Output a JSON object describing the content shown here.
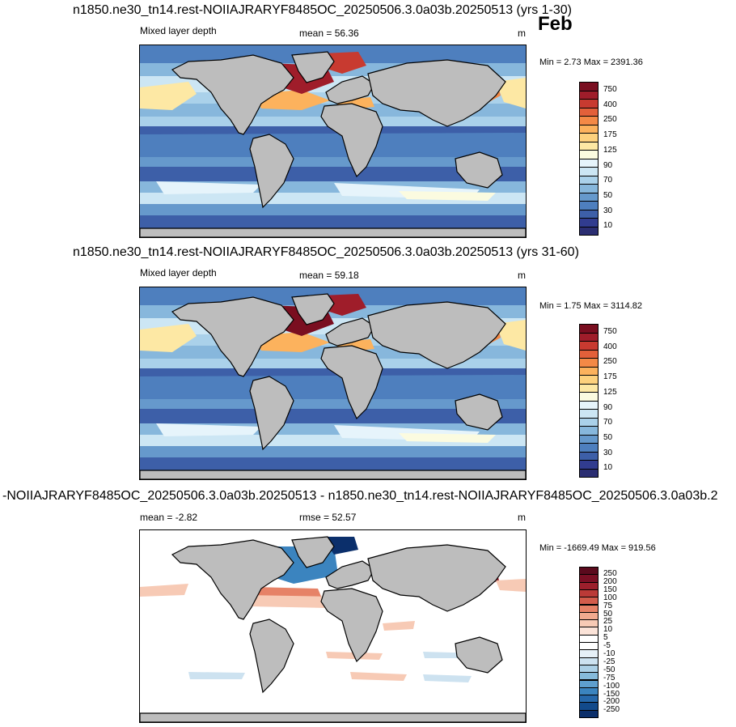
{
  "month": "Feb",
  "colors": {
    "land": "#bdbdbd",
    "ocean_levels_mld": [
      "#2b2e72",
      "#313c8f",
      "#3d5fa8",
      "#4e7fbe",
      "#6699cc",
      "#87b7dc",
      "#aad1ea",
      "#cce6f4",
      "#e6f4fb",
      "#fbfbe0",
      "#fde8a4",
      "#fdd17d",
      "#fcb25d",
      "#f48946",
      "#e3603a",
      "#c83a30",
      "#9f1d2a",
      "#7a0e20"
    ],
    "diff_levels": [
      "#0b2f6b",
      "#124a8b",
      "#2668ab",
      "#3b84bf",
      "#5e9fce",
      "#86bada",
      "#acd0e6",
      "#cde2f0",
      "#e6f0f7",
      "#ffffff",
      "#ffffff",
      "#fbe3d8",
      "#f7cab5",
      "#f1aa8f",
      "#e68267",
      "#d35c4b",
      "#bb3a37",
      "#9c1f2c",
      "#7a0f24",
      "#5b0a1d"
    ]
  },
  "panels": [
    {
      "title": "n1850.ne30_tn14.rest-NOIIAJRARYF8485OC_20250506.3.0a03b.20250513 (yrs 1-30)",
      "left_label": "Mixed layer depth",
      "center_label": "mean =  56.36",
      "units": "m",
      "minmax": "Min =   2.73 Max = 2391.36",
      "colorbar_labels": [
        "750",
        "400",
        "250",
        "175",
        "125",
        "90",
        "70",
        "50",
        "30",
        "10"
      ]
    },
    {
      "title": "n1850.ne30_tn14.rest-NOIIAJRARYF8485OC_20250506.3.0a03b.20250513 (yrs 31-60)",
      "left_label": "Mixed layer depth",
      "center_label": "mean =  59.18",
      "units": "m",
      "minmax": "Min =   1.75 Max = 3114.82",
      "colorbar_labels": [
        "750",
        "400",
        "250",
        "175",
        "125",
        "90",
        "70",
        "50",
        "30",
        "10"
      ]
    },
    {
      "title": "-NOIIAJRARYF8485OC_20250506.3.0a03b.20250513 - n1850.ne30_tn14.rest-NOIIAJRARYF8485OC_20250506.3.0a03b.2",
      "left_label": "mean =  -2.82",
      "center_label": "rmse =  52.57",
      "units": "m",
      "minmax": "Min = -1669.49 Max = 919.56",
      "colorbar_labels": [
        "250",
        "200",
        "150",
        "100",
        "75",
        "50",
        "25",
        "10",
        "5",
        "-5",
        "-10",
        "-25",
        "-50",
        "-75",
        "-100",
        "-150",
        "-200",
        "-250"
      ]
    }
  ],
  "chart_data": [
    {
      "type": "heatmap",
      "title": "n1850.ne30_tn14.rest-NOIIAJRARYF8485OC_20250506.3.0a03b.20250513 (yrs 1-30)",
      "variable": "Mixed layer depth",
      "units": "m",
      "month": "Feb",
      "mean": 56.36,
      "min": 2.73,
      "max": 2391.36,
      "contour_levels": [
        10,
        20,
        30,
        40,
        50,
        60,
        70,
        80,
        90,
        100,
        125,
        150,
        175,
        200,
        250,
        300,
        400,
        500,
        750
      ],
      "colorbar_tick_labels": [
        "750",
        "400",
        "250",
        "175",
        "125",
        "90",
        "70",
        "50",
        "30",
        "10"
      ]
    },
    {
      "type": "heatmap",
      "title": "n1850.ne30_tn14.rest-NOIIAJRARYF8485OC_20250506.3.0a03b.20250513 (yrs 31-60)",
      "variable": "Mixed layer depth",
      "units": "m",
      "month": "Feb",
      "mean": 59.18,
      "min": 1.75,
      "max": 3114.82,
      "contour_levels": [
        10,
        20,
        30,
        40,
        50,
        60,
        70,
        80,
        90,
        100,
        125,
        150,
        175,
        200,
        250,
        300,
        400,
        500,
        750
      ],
      "colorbar_tick_labels": [
        "750",
        "400",
        "250",
        "175",
        "125",
        "90",
        "70",
        "50",
        "30",
        "10"
      ]
    },
    {
      "type": "heatmap",
      "title": "-NOIIAJRARYF8485OC_20250506.3.0a03b.20250513 - n1850.ne30_tn14.rest-NOIIAJRARYF8485OC_20250506.3.0a03b.2",
      "units": "m",
      "mean": -2.82,
      "rmse": 52.57,
      "min": -1669.49,
      "max": 919.56,
      "contour_levels": [
        -250,
        -200,
        -150,
        -100,
        -75,
        -50,
        -25,
        -10,
        -5,
        5,
        10,
        25,
        50,
        75,
        100,
        150,
        200,
        250
      ],
      "colorbar_tick_labels": [
        "250",
        "200",
        "150",
        "100",
        "75",
        "50",
        "25",
        "10",
        "5",
        "-5",
        "-10",
        "-25",
        "-50",
        "-75",
        "-100",
        "-150",
        "-200",
        "-250"
      ]
    }
  ]
}
